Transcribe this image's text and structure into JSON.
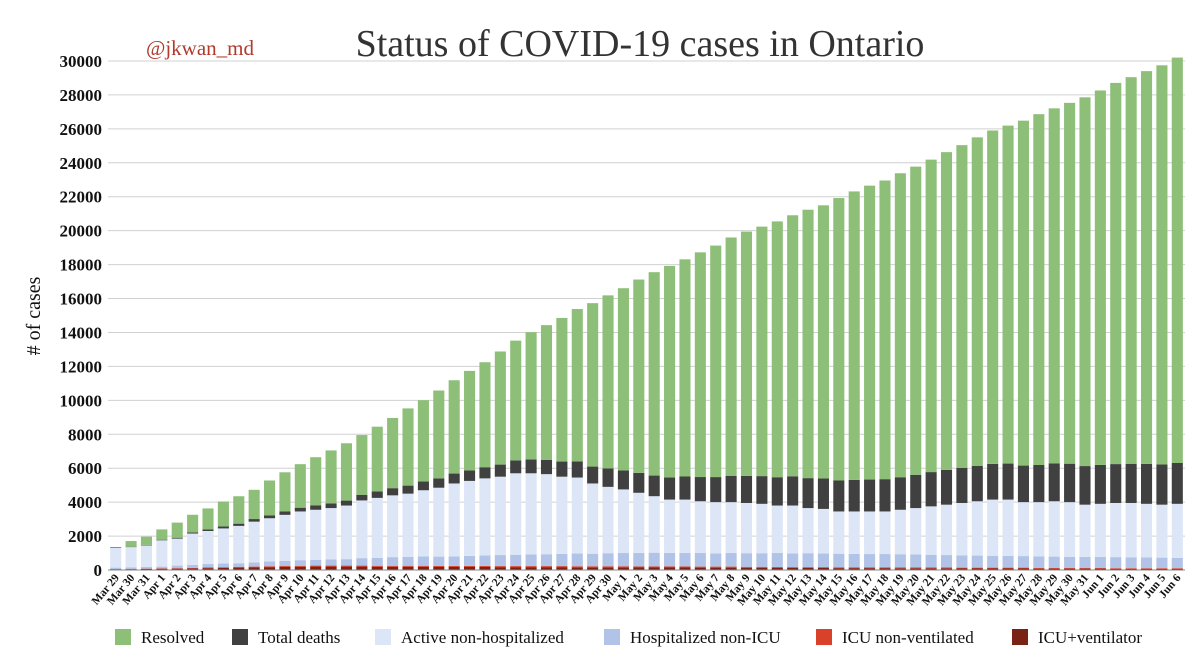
{
  "chart_data": {
    "type": "stacked_bar",
    "title": "Status of COVID-19 cases in Ontario",
    "watermark": "@jkwan_md",
    "y_label": "# of cases",
    "categories": [
      "Mar 29",
      "Mar 30",
      "Mar 31",
      "Apr 1",
      "Apr 2",
      "Apr 3",
      "Apr 4",
      "Apr 5",
      "Apr 6",
      "Apr 7",
      "Apr 8",
      "Apr 9",
      "Apr 10",
      "Apr 11",
      "Apr 12",
      "Apr 13",
      "Apr 14",
      "Apr 15",
      "Apr 16",
      "Apr 17",
      "Apr 18",
      "Apr 19",
      "Apr 20",
      "Apr 21",
      "Apr 22",
      "Apr 23",
      "Apr 24",
      "Apr 25",
      "Apr 26",
      "Apr 27",
      "Apr 28",
      "Apr 29",
      "Apr 30",
      "May 1",
      "May 2",
      "May 3",
      "May 4",
      "May 5",
      "May 6",
      "May 7",
      "May 8",
      "May 9",
      "May 10",
      "May 11",
      "May 12",
      "May 13",
      "May 14",
      "May 15",
      "May 16",
      "May 17",
      "May 18",
      "May 19",
      "May 20",
      "May 21",
      "May 22",
      "May 23",
      "May 24",
      "May 25",
      "May 26",
      "May 27",
      "May 28",
      "May 29",
      "May 30",
      "May 31",
      "Jun 1",
      "Jun 2",
      "Jun 3",
      "Jun 4",
      "Jun 5",
      "Jun 6"
    ],
    "series": [
      {
        "name": "Resolved",
        "color": "#8dbf78",
        "values": [
          32,
          333,
          483,
          605,
          890,
          1038,
          1236,
          1469,
          1615,
          1723,
          2052,
          2309,
          2565,
          2845,
          3125,
          3379,
          3519,
          3812,
          4138,
          4551,
          4796,
          5175,
          5500,
          5863,
          6186,
          6666,
          7056,
          7507,
          7947,
          8464,
          8980,
          9632,
          10205,
          10737,
          11393,
          11987,
          12473,
          12799,
          13243,
          13644,
          14058,
          14395,
          14704,
          15077,
          15382,
          15821,
          16096,
          16647,
          17005,
          17322,
          17603,
          17915,
          18162,
          18416,
          18730,
          19017,
          19357,
          19652,
          19918,
          20328,
          20677,
          20930,
          21267,
          21733,
          22071,
          22466,
          22785,
          23146,
          23525,
          23895
        ]
      },
      {
        "name": "Total deaths",
        "color": "#404040",
        "values": [
          23,
          23,
          33,
          37,
          53,
          67,
          94,
          119,
          132,
          153,
          174,
          200,
          222,
          253,
          274,
          291,
          334,
          385,
          423,
          474,
          514,
          553,
          584,
          622,
          659,
          713,
          763,
          811,
          835,
          892,
          951,
          996,
          1082,
          1121,
          1176,
          1216,
          1300,
          1361,
          1429,
          1477,
          1540,
          1599,
          1634,
          1669,
          1725,
          1765,
          1798,
          1825,
          1858,
          1881,
          1904,
          1919,
          1962,
          2021,
          2048,
          2073,
          2093,
          2102,
          2123,
          2155,
          2189,
          2230,
          2266,
          2276,
          2292,
          2293,
          2312,
          2357,
          2372,
          2407
        ]
      },
      {
        "name": "Active non-hospitalized",
        "color": "#dde6f7",
        "values": [
          1160,
          1190,
          1270,
          1550,
          1590,
          1850,
          1950,
          2070,
          2200,
          2400,
          2550,
          2710,
          2870,
          2950,
          3030,
          3160,
          3400,
          3530,
          3640,
          3720,
          3900,
          4060,
          4300,
          4420,
          4540,
          4620,
          4800,
          4780,
          4720,
          4550,
          4480,
          4140,
          3910,
          3750,
          3540,
          3330,
          3140,
          3150,
          3050,
          3020,
          3000,
          2960,
          2910,
          2800,
          2820,
          2660,
          2630,
          2490,
          2500,
          2510,
          2510,
          2620,
          2730,
          2850,
          2970,
          3090,
          3200,
          3310,
          3320,
          3180,
          3200,
          3260,
          3220,
          3080,
          3130,
          3190,
          3200,
          3160,
          3120,
          3180
        ]
      },
      {
        "name": "Hospitalized non-ICU",
        "color": "#b1c3e6",
        "values": [
          80,
          90,
          100,
          110,
          150,
          170,
          200,
          210,
          210,
          250,
          280,
          290,
          330,
          340,
          360,
          380,
          440,
          470,
          510,
          530,
          550,
          550,
          560,
          590,
          620,
          650,
          670,
          690,
          700,
          720,
          750,
          740,
          770,
          780,
          800,
          810,
          800,
          790,
          800,
          780,
          800,
          800,
          800,
          820,
          810,
          820,
          800,
          800,
          790,
          780,
          780,
          780,
          770,
          750,
          730,
          720,
          710,
          700,
          690,
          680,
          670,
          670,
          660,
          650,
          650,
          650,
          640,
          630,
          620,
          610
        ]
      },
      {
        "name": "ICU non-ventilated",
        "color": "#d9412b",
        "values": [
          20,
          20,
          20,
          30,
          30,
          30,
          40,
          40,
          50,
          50,
          50,
          60,
          60,
          60,
          60,
          60,
          60,
          60,
          60,
          60,
          60,
          60,
          60,
          60,
          60,
          60,
          60,
          60,
          60,
          60,
          60,
          60,
          60,
          60,
          60,
          60,
          60,
          60,
          60,
          60,
          60,
          60,
          60,
          50,
          50,
          50,
          50,
          50,
          50,
          50,
          50,
          50,
          50,
          50,
          50,
          50,
          50,
          50,
          50,
          50,
          50,
          40,
          40,
          40,
          40,
          40,
          40,
          40,
          40,
          40
        ]
      },
      {
        "name": "ICU+ventilator",
        "color": "#7a2215",
        "values": [
          40,
          50,
          60,
          60,
          80,
          100,
          110,
          130,
          140,
          150,
          170,
          190,
          190,
          200,
          200,
          200,
          200,
          190,
          190,
          190,
          190,
          180,
          180,
          180,
          180,
          170,
          170,
          170,
          170,
          170,
          160,
          160,
          160,
          160,
          150,
          150,
          150,
          150,
          140,
          140,
          140,
          130,
          130,
          130,
          120,
          120,
          120,
          110,
          110,
          110,
          110,
          100,
          100,
          100,
          100,
          90,
          90,
          90,
          90,
          90,
          80,
          80,
          80,
          80,
          80,
          70,
          70,
          70,
          70,
          70
        ]
      }
    ],
    "ylim": [
      0,
      30300
    ],
    "yticks": [
      0,
      2000,
      4000,
      6000,
      8000,
      10000,
      12000,
      14000,
      16000,
      18000,
      20000,
      22000,
      24000,
      26000,
      28000,
      30000
    ],
    "grid": true,
    "legend": "bottom"
  }
}
